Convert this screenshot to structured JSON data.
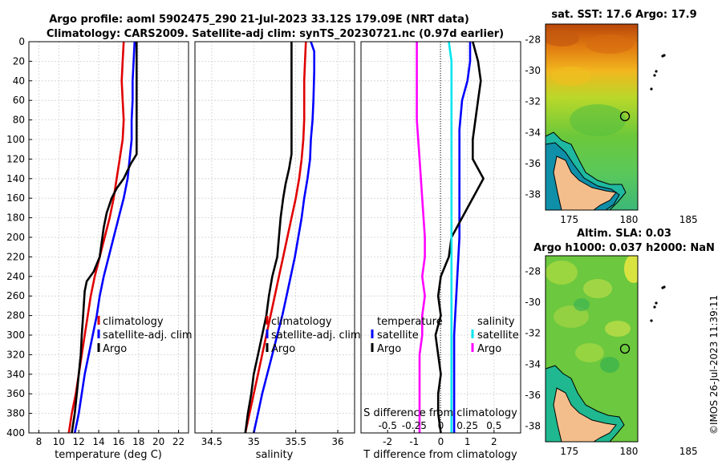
{
  "header": {
    "line1": "Argo profile: aoml 5902475_290 21-Jul-2023 33.12S 179.09E (NRT data)",
    "line2": "Climatology: CARS2009. Satellite-adj clim: synTS_20230721.nc (0.97d earlier)"
  },
  "watermark": "©IMOS 26-Jul-2023 11:39:11",
  "colors": {
    "climatology": "#e00000",
    "satellite": "#0000ff",
    "argo": "#000000",
    "sal_sat": "#00e5ee",
    "sal_argo": "#ff00ff"
  },
  "chart_data": [
    {
      "id": "temperature",
      "type": "line",
      "xlabel": "temperature (deg C)",
      "ylabel": "",
      "xlim": [
        7,
        23
      ],
      "ylim": [
        400,
        0
      ],
      "xticks": [
        "8",
        "10",
        "12",
        "14",
        "16",
        "18",
        "20",
        "22"
      ],
      "xtick_values": [
        8,
        10,
        12,
        14,
        16,
        18,
        20,
        22
      ],
      "yticks": [
        "0",
        "20",
        "40",
        "60",
        "80",
        "100",
        "120",
        "140",
        "160",
        "180",
        "200",
        "220",
        "240",
        "260",
        "280",
        "300",
        "320",
        "340",
        "360",
        "380",
        "400"
      ],
      "legend": [
        "climatology",
        "satellite-adj. clim",
        "Argo"
      ],
      "series": [
        {
          "name": "climatology",
          "color": "#e00000",
          "points": [
            [
              16.5,
              0
            ],
            [
              16.4,
              20
            ],
            [
              16.3,
              40
            ],
            [
              16.4,
              60
            ],
            [
              16.5,
              80
            ],
            [
              16.4,
              100
            ],
            [
              16.1,
              120
            ],
            [
              15.8,
              140
            ],
            [
              15.5,
              160
            ],
            [
              15.1,
              180
            ],
            [
              14.6,
              200
            ],
            [
              14.1,
              220
            ],
            [
              13.6,
              240
            ],
            [
              13.2,
              260
            ],
            [
              12.9,
              280
            ],
            [
              12.6,
              300
            ],
            [
              12.3,
              320
            ],
            [
              12.0,
              340
            ],
            [
              11.7,
              360
            ],
            [
              11.3,
              380
            ],
            [
              11.0,
              400
            ]
          ]
        },
        {
          "name": "satellite-adj. clim",
          "color": "#0000ff",
          "points": [
            [
              17.6,
              0
            ],
            [
              17.5,
              20
            ],
            [
              17.4,
              40
            ],
            [
              17.4,
              60
            ],
            [
              17.3,
              80
            ],
            [
              17.3,
              100
            ],
            [
              17.1,
              120
            ],
            [
              16.9,
              140
            ],
            [
              16.5,
              160
            ],
            [
              16.0,
              180
            ],
            [
              15.5,
              200
            ],
            [
              15.0,
              220
            ],
            [
              14.5,
              240
            ],
            [
              14.1,
              260
            ],
            [
              13.8,
              280
            ],
            [
              13.4,
              300
            ],
            [
              13.0,
              320
            ],
            [
              12.6,
              340
            ],
            [
              12.3,
              360
            ],
            [
              12.0,
              380
            ],
            [
              11.6,
              400
            ]
          ]
        },
        {
          "name": "Argo",
          "color": "#000000",
          "points": [
            [
              17.8,
              0
            ],
            [
              17.8,
              20
            ],
            [
              17.8,
              40
            ],
            [
              17.8,
              60
            ],
            [
              17.8,
              80
            ],
            [
              17.8,
              100
            ],
            [
              17.8,
              115
            ],
            [
              17.2,
              125
            ],
            [
              16.5,
              140
            ],
            [
              15.8,
              150
            ],
            [
              15.3,
              160
            ],
            [
              14.8,
              175
            ],
            [
              14.5,
              190
            ],
            [
              14.3,
              205
            ],
            [
              14.1,
              220
            ],
            [
              13.5,
              235
            ],
            [
              12.8,
              245
            ],
            [
              12.6,
              255
            ],
            [
              12.5,
              270
            ],
            [
              12.4,
              285
            ],
            [
              12.3,
              300
            ],
            [
              12.2,
              320
            ],
            [
              12.0,
              340
            ],
            [
              11.8,
              360
            ],
            [
              11.6,
              380
            ],
            [
              11.3,
              400
            ]
          ]
        }
      ]
    },
    {
      "id": "salinity",
      "type": "line",
      "xlabel": "salinity",
      "xlim": [
        34.3,
        36.2
      ],
      "ylim": [
        400,
        0
      ],
      "xticks": [
        "34.5",
        "35",
        "35.5",
        "36"
      ],
      "xtick_values": [
        34.5,
        35,
        35.5,
        36
      ],
      "legend": [
        "climatology",
        "satellite-adj. clim",
        "Argo"
      ],
      "series": [
        {
          "name": "climatology",
          "color": "#e00000",
          "points": [
            [
              35.62,
              0
            ],
            [
              35.61,
              20
            ],
            [
              35.6,
              40
            ],
            [
              35.6,
              60
            ],
            [
              35.6,
              80
            ],
            [
              35.59,
              100
            ],
            [
              35.57,
              120
            ],
            [
              35.54,
              140
            ],
            [
              35.5,
              160
            ],
            [
              35.45,
              180
            ],
            [
              35.4,
              200
            ],
            [
              35.35,
              220
            ],
            [
              35.3,
              240
            ],
            [
              35.25,
              260
            ],
            [
              35.2,
              280
            ],
            [
              35.15,
              300
            ],
            [
              35.1,
              320
            ],
            [
              35.05,
              340
            ],
            [
              35.0,
              360
            ],
            [
              34.95,
              380
            ],
            [
              34.9,
              400
            ]
          ]
        },
        {
          "name": "satellite-adj. clim",
          "color": "#0000ff",
          "points": [
            [
              35.68,
              0
            ],
            [
              35.72,
              10
            ],
            [
              35.72,
              30
            ],
            [
              35.71,
              60
            ],
            [
              35.7,
              80
            ],
            [
              35.68,
              100
            ],
            [
              35.67,
              120
            ],
            [
              35.64,
              140
            ],
            [
              35.6,
              160
            ],
            [
              35.57,
              180
            ],
            [
              35.53,
              200
            ],
            [
              35.49,
              220
            ],
            [
              35.44,
              240
            ],
            [
              35.39,
              260
            ],
            [
              35.34,
              280
            ],
            [
              35.28,
              300
            ],
            [
              35.22,
              320
            ],
            [
              35.16,
              340
            ],
            [
              35.1,
              360
            ],
            [
              35.05,
              380
            ],
            [
              35.0,
              400
            ]
          ]
        },
        {
          "name": "Argo",
          "color": "#000000",
          "points": [
            [
              35.45,
              0
            ],
            [
              35.45,
              20
            ],
            [
              35.45,
              40
            ],
            [
              35.45,
              60
            ],
            [
              35.45,
              80
            ],
            [
              35.45,
              100
            ],
            [
              35.45,
              115
            ],
            [
              35.42,
              130
            ],
            [
              35.38,
              145
            ],
            [
              35.35,
              160
            ],
            [
              35.32,
              180
            ],
            [
              35.3,
              200
            ],
            [
              35.28,
              220
            ],
            [
              35.22,
              240
            ],
            [
              35.18,
              260
            ],
            [
              35.15,
              280
            ],
            [
              35.1,
              300
            ],
            [
              35.05,
              320
            ],
            [
              35.0,
              340
            ],
            [
              34.97,
              360
            ],
            [
              34.93,
              380
            ],
            [
              34.9,
              400
            ]
          ]
        }
      ]
    },
    {
      "id": "difference",
      "type": "line",
      "xlabel": "T difference from climatology",
      "xlabel2": "S difference from climatology",
      "xlim": [
        -3,
        3
      ],
      "ylim": [
        400,
        0
      ],
      "xticks": [
        "-2",
        "-1",
        "0",
        "1",
        "2"
      ],
      "xtick_values": [
        -2,
        -1,
        0,
        1,
        2
      ],
      "sticks": [
        "-0.5",
        "-0.25",
        "0",
        "0.25",
        "0.5"
      ],
      "stick_values": [
        -2,
        -1,
        0,
        1,
        2
      ],
      "legend_temperature": {
        "title": "temperature",
        "items": [
          "satellite",
          "Argo"
        ]
      },
      "legend_salinity": {
        "title": "salinity",
        "items": [
          "satellite",
          "Argo"
        ]
      },
      "series": [
        {
          "name": "T satellite",
          "color": "#0000ff",
          "points": [
            [
              1.1,
              0
            ],
            [
              1.1,
              20
            ],
            [
              1.0,
              40
            ],
            [
              0.8,
              60
            ],
            [
              0.7,
              90
            ],
            [
              0.7,
              120
            ],
            [
              0.7,
              160
            ],
            [
              0.7,
              200
            ],
            [
              0.6,
              250
            ],
            [
              0.5,
              300
            ],
            [
              0.5,
              350
            ],
            [
              0.5,
              400
            ]
          ]
        },
        {
          "name": "T Argo",
          "color": "#000000",
          "points": [
            [
              1.2,
              0
            ],
            [
              1.4,
              20
            ],
            [
              1.5,
              40
            ],
            [
              1.4,
              60
            ],
            [
              1.3,
              80
            ],
            [
              1.2,
              100
            ],
            [
              1.2,
              120
            ],
            [
              1.6,
              140
            ],
            [
              1.2,
              160
            ],
            [
              0.8,
              180
            ],
            [
              0.4,
              200
            ],
            [
              0.3,
              220
            ],
            [
              0.0,
              240
            ],
            [
              -0.1,
              260
            ],
            [
              0.0,
              280
            ],
            [
              -0.2,
              300
            ],
            [
              -0.1,
              320
            ],
            [
              0.0,
              340
            ],
            [
              -0.1,
              360
            ],
            [
              -0.1,
              380
            ],
            [
              0.0,
              400
            ]
          ]
        },
        {
          "name": "S satellite",
          "color": "#00e5ee",
          "points": [
            [
              0.3,
              0
            ],
            [
              0.4,
              20
            ],
            [
              0.4,
              60
            ],
            [
              0.4,
              120
            ],
            [
              0.4,
              180
            ],
            [
              0.4,
              240
            ],
            [
              0.4,
              300
            ],
            [
              0.4,
              400
            ]
          ]
        },
        {
          "name": "S Argo",
          "color": "#ff00ff",
          "points": [
            [
              -0.9,
              0
            ],
            [
              -0.9,
              40
            ],
            [
              -0.9,
              80
            ],
            [
              -0.8,
              120
            ],
            [
              -0.7,
              160
            ],
            [
              -0.6,
              200
            ],
            [
              -0.6,
              220
            ],
            [
              -0.7,
              240
            ],
            [
              -0.6,
              260
            ],
            [
              -0.7,
              280
            ],
            [
              -0.7,
              300
            ],
            [
              -0.8,
              320
            ],
            [
              -0.8,
              340
            ],
            [
              -0.8,
              360
            ],
            [
              -0.8,
              380
            ],
            [
              -0.8,
              400
            ]
          ]
        }
      ]
    },
    {
      "id": "sst_map",
      "type": "heatmap",
      "title": "sat. SST: 17.6 Argo: 17.9",
      "xticks": [
        "175",
        "180",
        "185"
      ],
      "xtick_values": [
        175,
        180,
        185
      ],
      "yticks": [
        "-28",
        "-30",
        "-32",
        "-34",
        "-36",
        "-38"
      ],
      "ytick_values": [
        -28,
        -30,
        -32,
        -34,
        -36,
        -38
      ],
      "xlim": [
        173,
        186
      ],
      "ylim": [
        -39,
        -27
      ],
      "argo_position": [
        179.09,
        -33.12
      ]
    },
    {
      "id": "sla_map",
      "type": "heatmap",
      "title": "Altim. SLA: 0.03",
      "subtitle": "Argo h1000: 0.037 h2000: NaN",
      "xticks": [
        "175",
        "180",
        "185"
      ],
      "xtick_values": [
        175,
        180,
        185
      ],
      "yticks": [
        "-28",
        "-30",
        "-32",
        "-34",
        "-36",
        "-38"
      ],
      "ytick_values": [
        -28,
        -30,
        -32,
        -34,
        -36,
        -38
      ],
      "xlim": [
        173,
        186
      ],
      "ylim": [
        -39,
        -27
      ],
      "argo_position": [
        179.09,
        -33.12
      ]
    }
  ]
}
